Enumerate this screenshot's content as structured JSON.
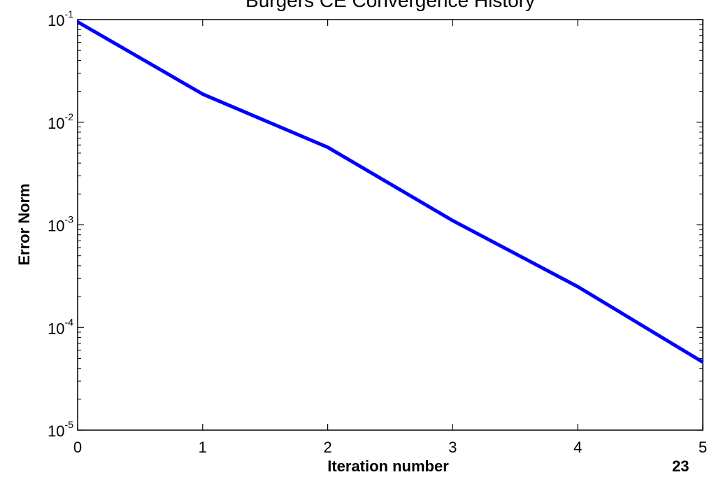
{
  "chart_data": {
    "type": "line",
    "title": "Burgers CE Convergence History",
    "xlabel": "Iteration number",
    "ylabel": "Error Norm",
    "x": [
      0,
      1,
      2,
      3,
      4,
      5
    ],
    "xlim": [
      0,
      5
    ],
    "xticks": [
      "0",
      "1",
      "2",
      "3",
      "4",
      "5"
    ],
    "yscale": "log",
    "ylim": [
      1e-05,
      0.1
    ],
    "yticks": [
      {
        "base": "10",
        "exp": "-1",
        "value": 0.1
      },
      {
        "base": "10",
        "exp": "-2",
        "value": 0.01
      },
      {
        "base": "10",
        "exp": "-3",
        "value": 0.001
      },
      {
        "base": "10",
        "exp": "-4",
        "value": 0.0001
      },
      {
        "base": "10",
        "exp": "-5",
        "value": 1e-05
      }
    ],
    "series": [
      {
        "values": [
          0.095,
          0.0188,
          0.0057,
          0.0011,
          0.00025,
          4.6e-05
        ],
        "color": "#0000ff"
      }
    ],
    "grid": false,
    "legend": "none"
  },
  "page_number": "23"
}
